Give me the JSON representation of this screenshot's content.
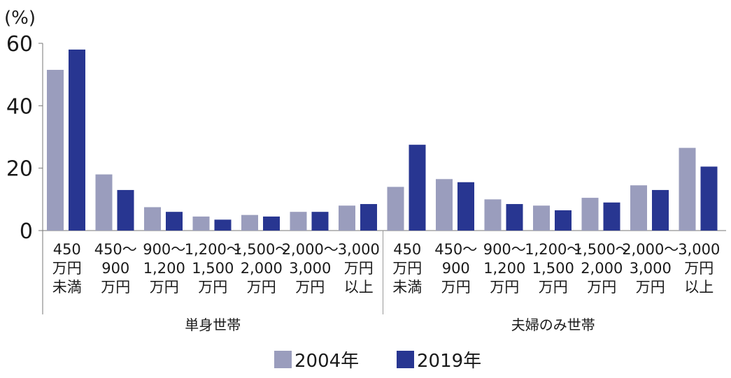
{
  "chart_data": {
    "type": "bar",
    "unit_label": "(%)",
    "ylim": [
      0,
      60
    ],
    "yticks": [
      "0",
      "20",
      "40",
      "60"
    ],
    "grid": false,
    "legend_position": "bottom-center",
    "groups": [
      {
        "label": "単身世帯",
        "categories": [
          [
            "450",
            "万円",
            "未満"
          ],
          [
            "450〜",
            "900",
            "万円"
          ],
          [
            "900〜",
            "1,200",
            "万円"
          ],
          [
            "1,200〜",
            "1,500",
            "万円"
          ],
          [
            "1,500〜",
            "2,000",
            "万円"
          ],
          [
            "2,000〜",
            "3,000",
            "万円"
          ],
          [
            "3,000",
            "万円",
            "以上"
          ]
        ]
      },
      {
        "label": "夫婦のみ世帯",
        "categories": [
          [
            "450",
            "万円",
            "未満"
          ],
          [
            "450〜",
            "900",
            "万円"
          ],
          [
            "900〜",
            "1,200",
            "万円"
          ],
          [
            "1,200〜",
            "1,500",
            "万円"
          ],
          [
            "1,500〜",
            "2,000",
            "万円"
          ],
          [
            "2,000〜",
            "3,000",
            "万円"
          ],
          [
            "3,000",
            "万円",
            "以上"
          ]
        ]
      }
    ],
    "series": [
      {
        "name": "2004年",
        "color": "#9a9dbd",
        "values": [
          51.5,
          18,
          7.5,
          4.5,
          5,
          6,
          8,
          14,
          16.5,
          10,
          8,
          10.5,
          14.5,
          26.5
        ]
      },
      {
        "name": "2019年",
        "color": "#283691",
        "values": [
          58,
          13,
          6,
          3.5,
          4.5,
          6,
          8.5,
          27.5,
          15.5,
          8.5,
          6.5,
          9,
          13,
          20.5
        ]
      }
    ]
  }
}
